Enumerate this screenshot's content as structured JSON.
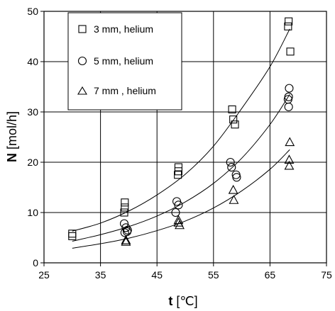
{
  "chart_data": {
    "type": "scatter",
    "xlabel": "t [℃]",
    "xlabel_bold": "t",
    "xlabel_unit": "[℃]",
    "ylabel": "N [mol/h]",
    "ylabel_bold": "N",
    "ylabel_unit": "[mol/h]",
    "xlim": [
      25,
      75
    ],
    "ylim": [
      0,
      50
    ],
    "x_ticks": [
      "25",
      "35",
      "45",
      "55",
      "65",
      "75"
    ],
    "y_ticks": [
      "0",
      "10",
      "20",
      "30",
      "40",
      "50"
    ],
    "grid": true,
    "legend_position": "top-left",
    "series": [
      {
        "name": "3 mm,  helium",
        "marker": "square",
        "points": [
          [
            30,
            5.8
          ],
          [
            30,
            5.3
          ],
          [
            39.3,
            12
          ],
          [
            39.3,
            11
          ],
          [
            39.2,
            10
          ],
          [
            48.8,
            19
          ],
          [
            48.8,
            18.2
          ],
          [
            48.7,
            17.5
          ],
          [
            58.3,
            30.5
          ],
          [
            58.5,
            28.5
          ],
          [
            58.8,
            27.5
          ],
          [
            68.3,
            48
          ],
          [
            68.2,
            47
          ],
          [
            68.6,
            42
          ]
        ],
        "fit": [
          [
            30,
            6.3
          ],
          [
            35,
            7.9
          ],
          [
            40,
            10.3
          ],
          [
            45,
            13.5
          ],
          [
            50,
            17.6
          ],
          [
            55,
            23.2
          ],
          [
            60,
            30.7
          ],
          [
            65,
            39.0
          ],
          [
            68.5,
            46.5
          ]
        ]
      },
      {
        "name": "5 mm,  helium",
        "marker": "circle",
        "points": [
          [
            39.2,
            7.8
          ],
          [
            39.5,
            7
          ],
          [
            39.8,
            6.5
          ],
          [
            39.3,
            6
          ],
          [
            39.7,
            6.2
          ],
          [
            48.5,
            12.2
          ],
          [
            48.8,
            11.5
          ],
          [
            48.3,
            10
          ],
          [
            58.0,
            20
          ],
          [
            58.2,
            19
          ],
          [
            59.0,
            17.5
          ],
          [
            59.1,
            17
          ],
          [
            68.4,
            34.7
          ],
          [
            68.3,
            33
          ],
          [
            68.2,
            32.5
          ],
          [
            68.3,
            31
          ]
        ],
        "fit": [
          [
            30,
            4.3
          ],
          [
            35,
            5.6
          ],
          [
            40,
            7.2
          ],
          [
            45,
            9.3
          ],
          [
            50,
            12.1
          ],
          [
            55,
            15.8
          ],
          [
            60,
            20.8
          ],
          [
            65,
            27.5
          ],
          [
            68.5,
            33.5
          ]
        ]
      },
      {
        "name": "7 mm , helium",
        "marker": "triangle",
        "points": [
          [
            39.5,
            4.5
          ],
          [
            39.5,
            4.2
          ],
          [
            48.8,
            8.5
          ],
          [
            48.8,
            8
          ],
          [
            49.0,
            7.5
          ],
          [
            58.5,
            14.5
          ],
          [
            58.6,
            12.5
          ],
          [
            68.5,
            24
          ],
          [
            68.4,
            20.5
          ],
          [
            68.4,
            19.3
          ]
        ],
        "fit": [
          [
            30,
            2.9
          ],
          [
            35,
            3.8
          ],
          [
            40,
            4.9
          ],
          [
            45,
            6.4
          ],
          [
            50,
            8.3
          ],
          [
            55,
            10.9
          ],
          [
            60,
            14.3
          ],
          [
            65,
            18.6
          ],
          [
            68.5,
            22.5
          ]
        ]
      }
    ]
  }
}
